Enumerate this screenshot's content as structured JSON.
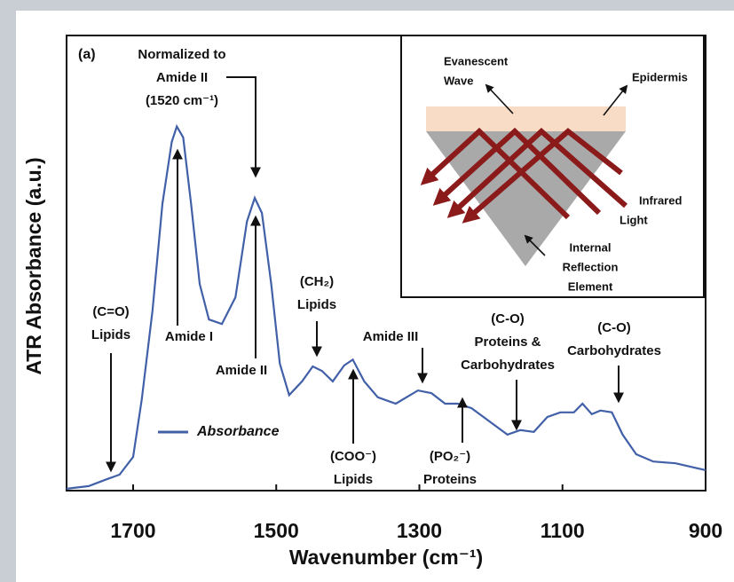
{
  "chart_data": {
    "type": "line",
    "panel_label": "(a)",
    "xlabel": "Wavenumber (cm⁻¹)",
    "ylabel": "ATR Absorbance (a.u.)",
    "xlim": [
      1793,
      900
    ],
    "ylim": [
      0,
      1
    ],
    "xticks": [
      1700,
      1500,
      1300,
      1100,
      900
    ],
    "legend": "lower-left",
    "series": [
      {
        "name": "Absorbance",
        "color": "#4160a8",
        "x": [
          1793,
          1762,
          1737,
          1719,
          1700,
          1688,
          1673,
          1659,
          1646,
          1639,
          1630,
          1619,
          1607,
          1594,
          1576,
          1557,
          1541,
          1530,
          1520,
          1507,
          1495,
          1482,
          1464,
          1449,
          1436,
          1421,
          1405,
          1393,
          1377,
          1358,
          1333,
          1302,
          1283,
          1264,
          1246,
          1227,
          1202,
          1177,
          1159,
          1140,
          1121,
          1103,
          1084,
          1072,
          1059,
          1047,
          1031,
          1016,
          997,
          973,
          942,
          917,
          900
        ],
        "values": [
          0.004,
          0.01,
          0.025,
          0.035,
          0.074,
          0.2,
          0.395,
          0.63,
          0.766,
          0.8,
          0.776,
          0.63,
          0.454,
          0.376,
          0.366,
          0.425,
          0.591,
          0.643,
          0.61,
          0.454,
          0.279,
          0.21,
          0.24,
          0.273,
          0.263,
          0.24,
          0.275,
          0.288,
          0.24,
          0.205,
          0.191,
          0.22,
          0.214,
          0.191,
          0.191,
          0.181,
          0.152,
          0.123,
          0.133,
          0.129,
          0.162,
          0.172,
          0.172,
          0.191,
          0.168,
          0.176,
          0.172,
          0.123,
          0.08,
          0.064,
          0.06,
          0.051,
          0.045
        ]
      }
    ],
    "annotations": [
      {
        "lines": [
          "(C=O)",
          "Lipids"
        ]
      },
      {
        "lines": [
          "Normalized to",
          "Amide II",
          "(1520 cm⁻¹)"
        ]
      },
      {
        "lines": [
          "Amide I"
        ]
      },
      {
        "lines": [
          "Amide II"
        ]
      },
      {
        "lines": [
          "(CH₂)",
          "Lipids"
        ]
      },
      {
        "lines": [
          "(COO⁻)",
          "Lipids"
        ]
      },
      {
        "lines": [
          "Amide III"
        ]
      },
      {
        "lines": [
          "(C-O)",
          "Proteins &",
          "Carbohydrates"
        ]
      },
      {
        "lines": [
          "(PO₂⁻)",
          "Proteins"
        ]
      },
      {
        "lines": [
          "(C-O)",
          "Carbohydrates"
        ]
      }
    ],
    "inset_labels": [
      {
        "lines": [
          "Evanescent",
          "Wave"
        ]
      },
      {
        "lines": [
          "Epidermis"
        ]
      },
      {
        "lines": [
          "Infrared",
          "Light"
        ]
      },
      {
        "lines": [
          "Internal",
          "Reflection",
          "Element"
        ]
      }
    ]
  }
}
